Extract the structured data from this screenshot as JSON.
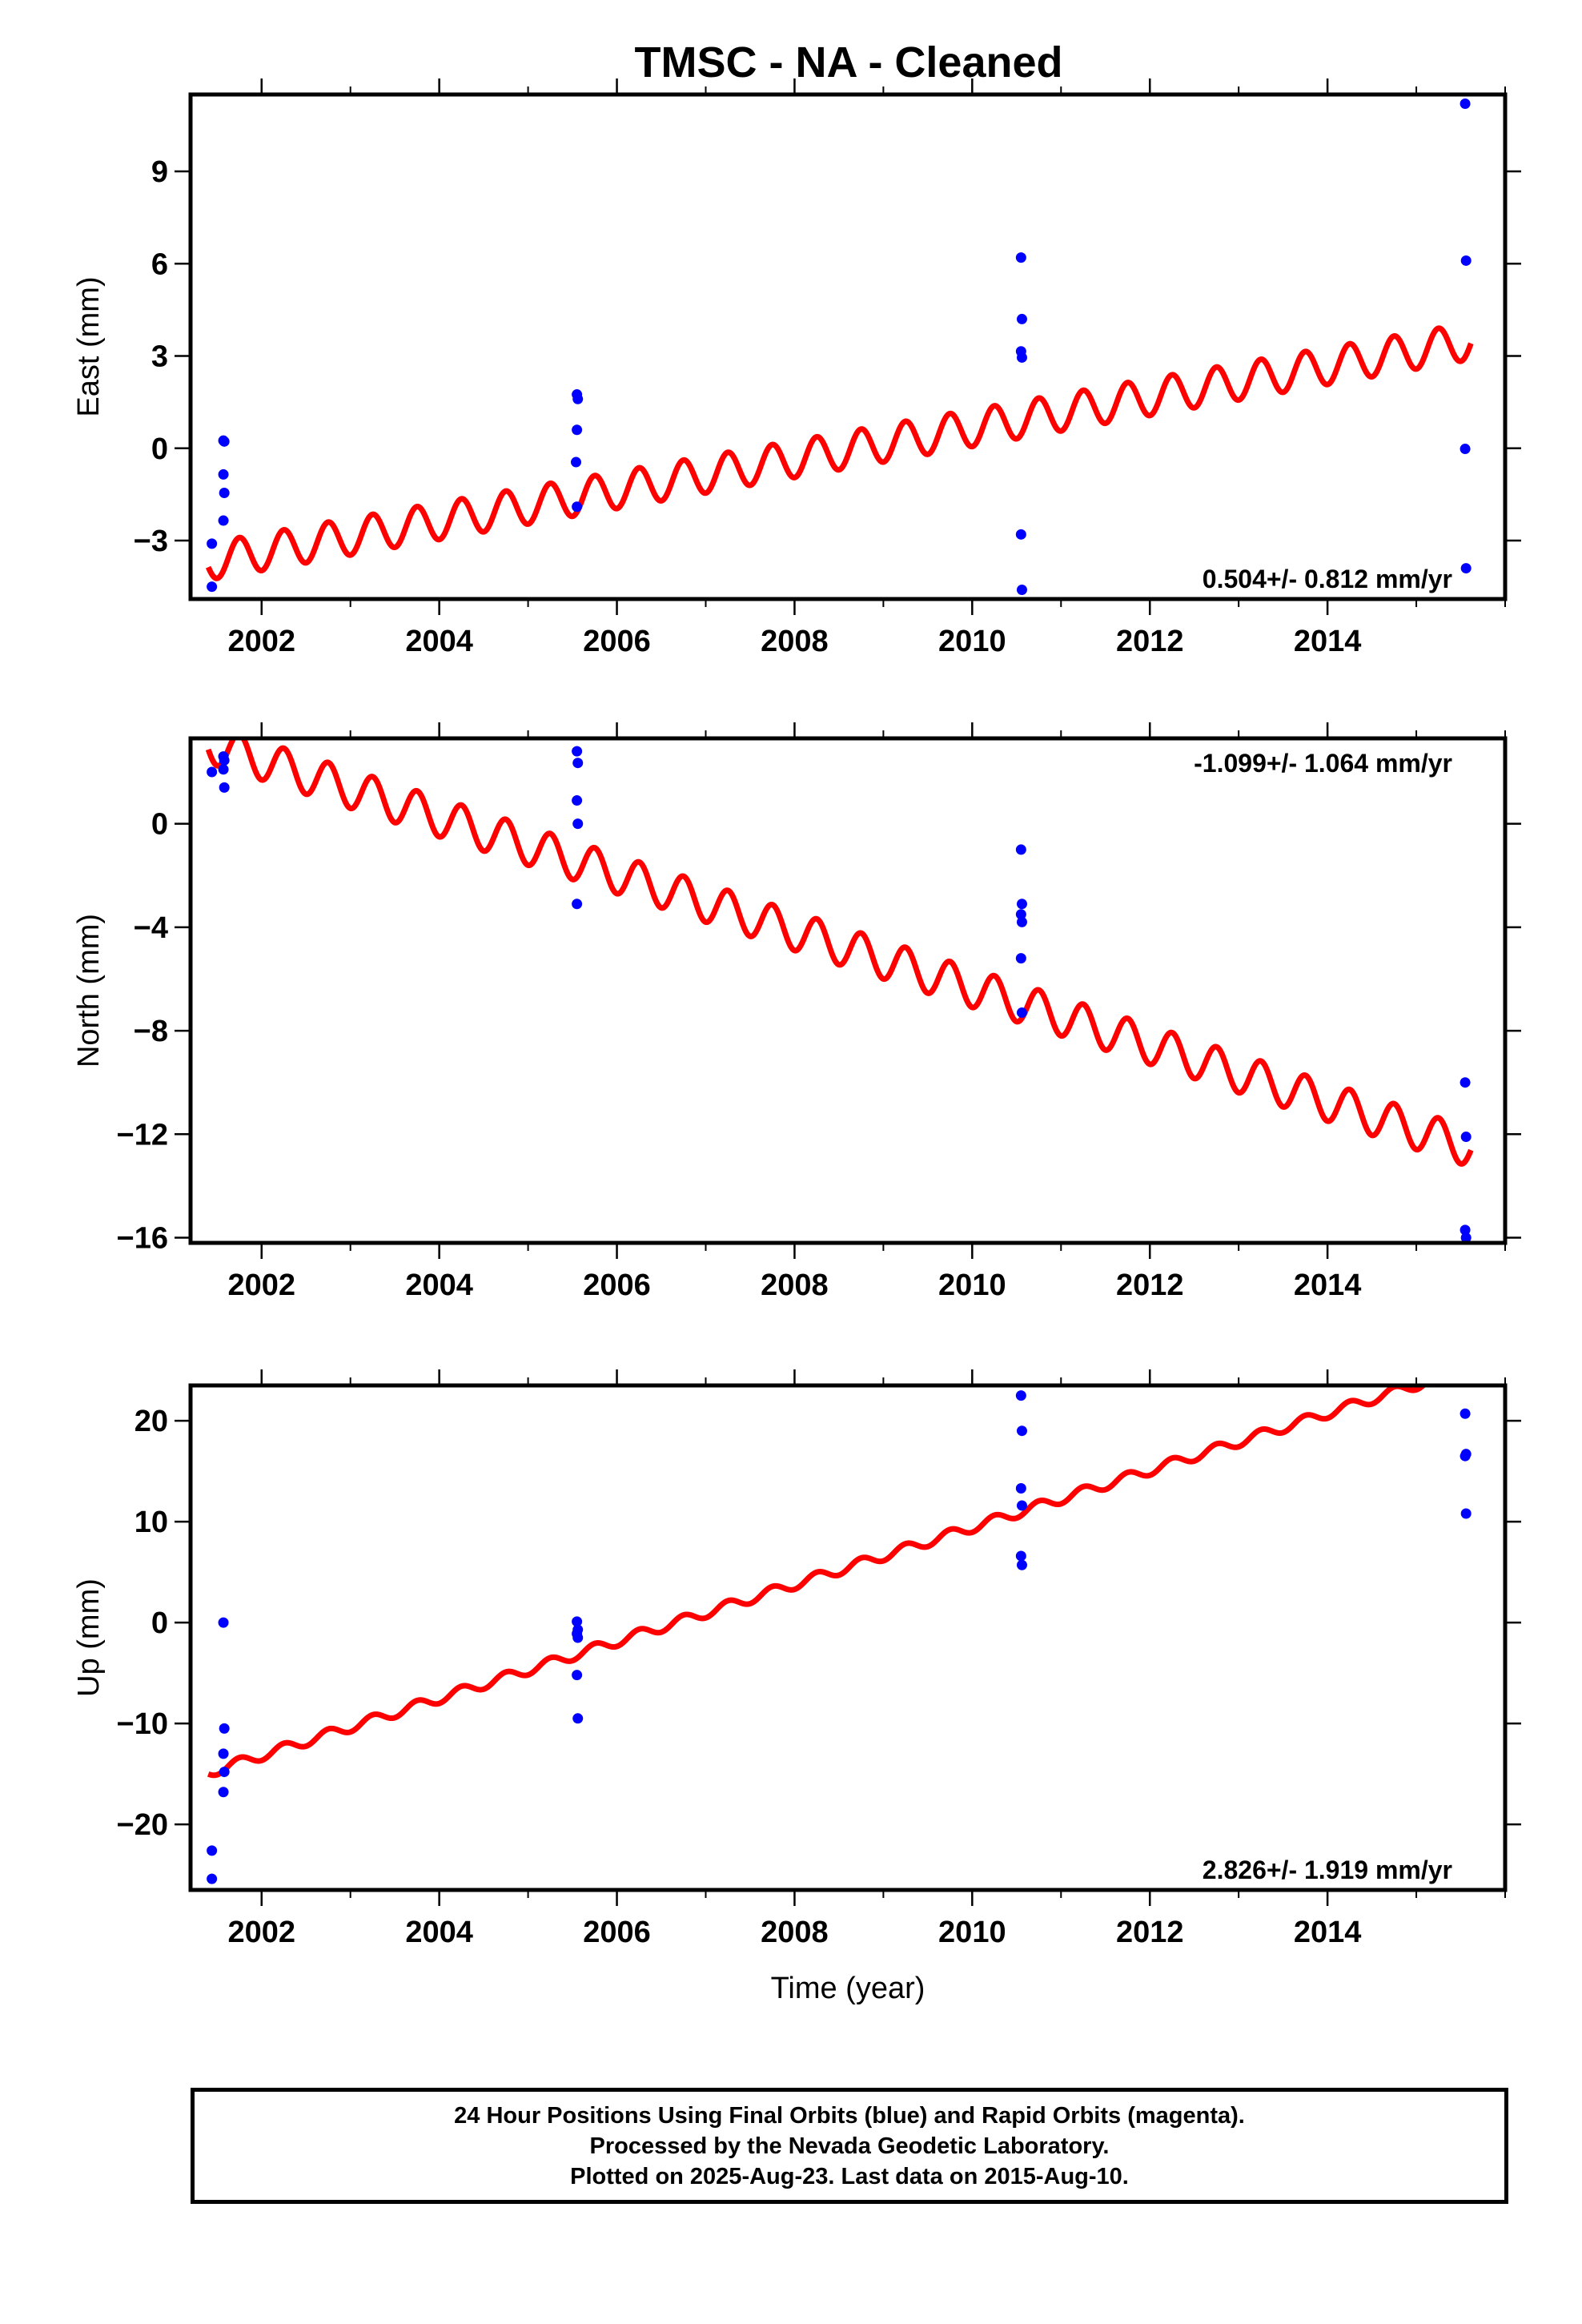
{
  "title": "TMSC  - NA - Cleaned",
  "footer": {
    "line1": "24 Hour Positions Using Final Orbits (blue) and Rapid Orbits (magenta).",
    "line2": "Processed by the Nevada Geodetic Laboratory.",
    "line3": "Plotted on 2025-Aug-23. Last data on 2015-Aug-10."
  },
  "colors": {
    "final_orbits": "#0000ff",
    "model_fit": "#ff0000",
    "axes": "#000000"
  },
  "chart_data": [
    {
      "type": "scatter",
      "ylabel": "East (mm)",
      "xlim": [
        2001.2,
        2016.0
      ],
      "ylim": [
        -4.9,
        11.5
      ],
      "xticks": [
        2002,
        2004,
        2006,
        2008,
        2010,
        2012,
        2014
      ],
      "yticks": [
        -3,
        0,
        3,
        6,
        9
      ],
      "rate_label": "0.504+/- 0.812 mm/yr",
      "rate_position": "bottom-right",
      "series": [
        {
          "points": [
            [
              2001.44,
              -3.1
            ],
            [
              2001.44,
              -4.5
            ],
            [
              2001.57,
              0.25
            ],
            [
              2001.58,
              0.22
            ],
            [
              2001.57,
              -0.85
            ],
            [
              2001.58,
              -1.45
            ],
            [
              2001.57,
              -2.35
            ],
            [
              2005.55,
              1.75
            ],
            [
              2005.56,
              1.6
            ],
            [
              2005.55,
              0.6
            ],
            [
              2005.54,
              -0.45
            ],
            [
              2005.55,
              -1.9
            ],
            [
              2010.55,
              6.2
            ],
            [
              2010.56,
              4.2
            ],
            [
              2010.55,
              3.15
            ],
            [
              2010.56,
              2.95
            ],
            [
              2010.55,
              -2.8
            ],
            [
              2010.56,
              -4.6
            ],
            [
              2015.55,
              11.2
            ],
            [
              2015.56,
              6.1
            ],
            [
              2015.55,
              -0.02
            ],
            [
              2015.56,
              -3.9
            ]
          ]
        },
        {
          "model": {
            "t0": 2008.5,
            "offset": -0.1,
            "rate": 0.504,
            "amplitude": 0.6,
            "period": 0.5,
            "phase": 0.25,
            "t_start": 2001.4,
            "t_end": 2015.62
          }
        }
      ]
    },
    {
      "type": "scatter",
      "ylabel": "North (mm)",
      "xlim": [
        2001.2,
        2016.0
      ],
      "ylim": [
        -16.2,
        3.3
      ],
      "xticks": [
        2002,
        2004,
        2006,
        2008,
        2010,
        2012,
        2014
      ],
      "yticks": [
        -16,
        -12,
        -8,
        -4,
        0
      ],
      "rate_label": "-1.099+/- 1.064 mm/yr",
      "rate_position": "top-right",
      "series": [
        {
          "points": [
            [
              2001.44,
              2.0
            ],
            [
              2001.57,
              2.6
            ],
            [
              2001.58,
              2.45
            ],
            [
              2001.57,
              2.1
            ],
            [
              2001.58,
              1.4
            ],
            [
              2005.55,
              2.8
            ],
            [
              2005.56,
              2.35
            ],
            [
              2005.55,
              0.9
            ],
            [
              2005.56,
              0.0
            ],
            [
              2005.55,
              -3.1
            ],
            [
              2010.55,
              -1.0
            ],
            [
              2010.56,
              -3.1
            ],
            [
              2010.55,
              -3.5
            ],
            [
              2010.56,
              -3.8
            ],
            [
              2010.55,
              -5.2
            ],
            [
              2010.56,
              -7.3
            ],
            [
              2015.55,
              -10.0
            ],
            [
              2015.56,
              -12.1
            ],
            [
              2015.55,
              -15.7
            ],
            [
              2015.56,
              -16.0
            ]
          ]
        },
        {
          "model": {
            "t0": 2008.5,
            "offset": -4.7,
            "rate": -1.099,
            "amplitude": 0.75,
            "period": 0.5,
            "phase": 0.25,
            "t_start": 2001.4,
            "t_end": 2015.62
          }
        }
      ]
    },
    {
      "type": "scatter",
      "ylabel": "Up (mm)",
      "xlabel": "Time (year)",
      "xlim": [
        2001.2,
        2016.0
      ],
      "ylim": [
        -26.5,
        23.5
      ],
      "xticks": [
        2002,
        2004,
        2006,
        2008,
        2010,
        2012,
        2014
      ],
      "yticks": [
        -20,
        -10,
        0,
        10,
        20
      ],
      "rate_label": "2.826+/- 1.919 mm/yr",
      "rate_position": "bottom-right",
      "series": [
        {
          "points": [
            [
              2001.44,
              -22.6
            ],
            [
              2001.44,
              -25.4
            ],
            [
              2001.57,
              0.0
            ],
            [
              2001.58,
              -10.5
            ],
            [
              2001.57,
              -13.0
            ],
            [
              2001.58,
              -14.8
            ],
            [
              2001.57,
              -16.8
            ],
            [
              2005.55,
              0.1
            ],
            [
              2005.56,
              -0.7
            ],
            [
              2005.55,
              -1.1
            ],
            [
              2005.56,
              -1.5
            ],
            [
              2005.55,
              -5.2
            ],
            [
              2005.56,
              -9.5
            ],
            [
              2010.55,
              22.5
            ],
            [
              2010.56,
              19.0
            ],
            [
              2010.55,
              13.3
            ],
            [
              2010.56,
              11.6
            ],
            [
              2010.55,
              6.6
            ],
            [
              2010.56,
              5.7
            ],
            [
              2015.55,
              20.7
            ],
            [
              2015.56,
              16.7
            ],
            [
              2015.55,
              16.5
            ],
            [
              2015.56,
              10.8
            ]
          ]
        },
        {
          "model": {
            "t0": 2008.5,
            "offset": 5.2,
            "rate": 2.826,
            "amplitude": 0.5,
            "period": 0.5,
            "phase": 0.25,
            "t_start": 2001.4,
            "t_end": 2015.62
          }
        }
      ]
    }
  ]
}
